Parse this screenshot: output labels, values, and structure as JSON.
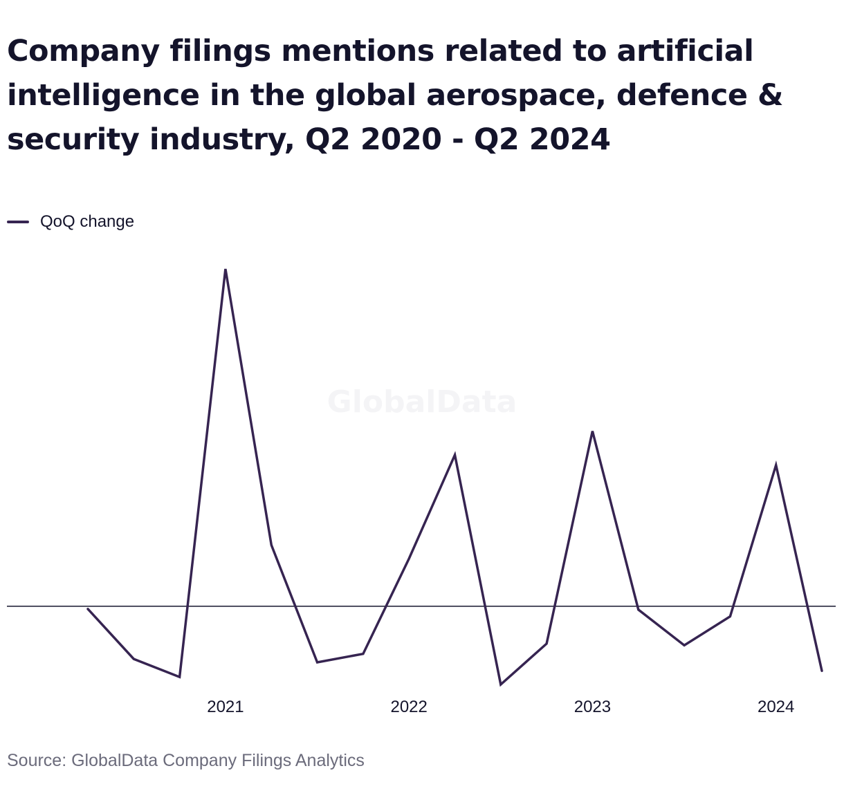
{
  "title": "Company filings mentions related to artificial intelligence in the global aerospace, defence & security industry, Q2 2020 - Q2 2024",
  "legend": {
    "label": "QoQ change"
  },
  "watermark": "GlobalData",
  "source": "Source: GlobalData Company Filings Analytics",
  "colors": {
    "series": "#362451",
    "zero_line": "#14142b",
    "text": "#14142b",
    "source": "#6b6b7b",
    "watermark": "#f4f4f6"
  },
  "chart_data": {
    "type": "line",
    "title": "Company filings mentions related to artificial intelligence in the global aerospace, defence & security industry, Q2 2020 - Q2 2024",
    "x": [
      "Q2 2020",
      "Q3 2020",
      "Q4 2020",
      "Q1 2021",
      "Q2 2021",
      "Q3 2021",
      "Q4 2021",
      "Q1 2022",
      "Q2 2022",
      "Q3 2022",
      "Q4 2022",
      "Q1 2023",
      "Q2 2023",
      "Q3 2023",
      "Q4 2023",
      "Q1 2024",
      "Q2 2024"
    ],
    "x_tick_labels": [
      {
        "label": "2021",
        "at": "Q1 2021"
      },
      {
        "label": "2022",
        "at": "Q1 2022"
      },
      {
        "label": "2023",
        "at": "Q1 2023"
      },
      {
        "label": "2024",
        "at": "Q1 2024"
      }
    ],
    "series": [
      {
        "name": "QoQ change",
        "values": [
          -0.8,
          -15.5,
          -20.8,
          99.2,
          18.0,
          -16.5,
          -14.0,
          14.0,
          44.5,
          -23.0,
          -11.0,
          51.5,
          -1.0,
          -11.5,
          -3.0,
          41.5,
          -19.0
        ]
      }
    ],
    "ylim": [
      -28,
      100
    ],
    "zero_line": true,
    "grid": false,
    "legend_position": "top-left"
  }
}
